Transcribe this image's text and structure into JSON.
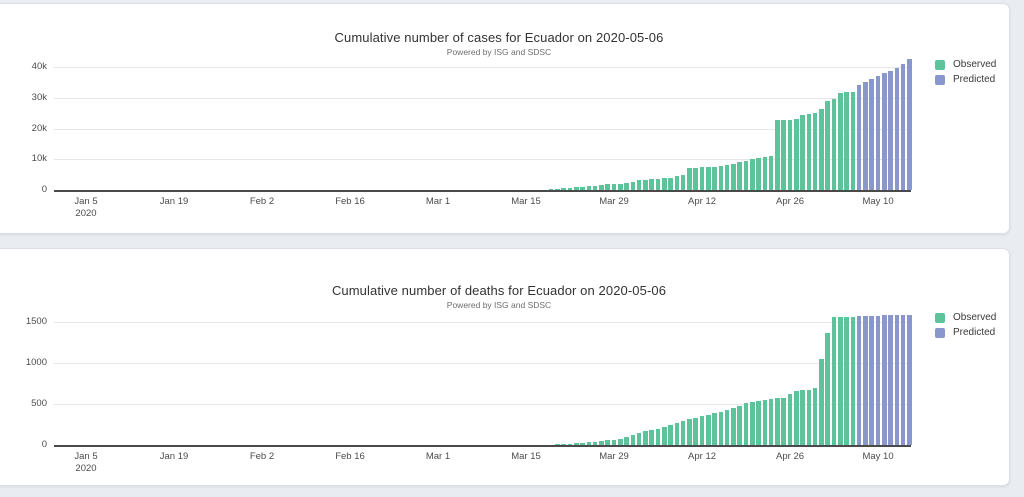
{
  "page": {
    "background_color": "#e9edf2",
    "card_color": "#ffffff"
  },
  "x_axis": {
    "ticks": [
      {
        "date": "2020-01-05",
        "label": "Jan 5",
        "sublabel": "2020"
      },
      {
        "date": "2020-01-19",
        "label": "Jan 19"
      },
      {
        "date": "2020-02-02",
        "label": "Feb 2"
      },
      {
        "date": "2020-02-16",
        "label": "Feb 16"
      },
      {
        "date": "2020-03-01",
        "label": "Mar 1"
      },
      {
        "date": "2020-03-15",
        "label": "Mar 15"
      },
      {
        "date": "2020-03-29",
        "label": "Mar 29"
      },
      {
        "date": "2020-04-12",
        "label": "Apr 12"
      },
      {
        "date": "2020-04-26",
        "label": "Apr 26"
      },
      {
        "date": "2020-05-10",
        "label": "May 10"
      }
    ]
  },
  "chart_data": [
    {
      "type": "bar",
      "title": "Cumulative number of cases for Ecuador on 2020-05-06",
      "subtitle": "Powered by ISG and SDSC",
      "xlabel": "",
      "ylabel": "",
      "x_range": [
        "2019-12-31",
        "2020-05-16"
      ],
      "ylim": [
        0,
        42600
      ],
      "grid": true,
      "legend_position": "right",
      "y_ticks": [
        {
          "label": "0",
          "value": 0
        },
        {
          "label": "10k",
          "value": 10000
        },
        {
          "label": "20k",
          "value": 20000
        },
        {
          "label": "30k",
          "value": 30000
        },
        {
          "label": "40k",
          "value": 40000
        }
      ],
      "series": [
        {
          "name": "Observed",
          "color": "#5cc39b",
          "start_date": "2020-03-01",
          "frequency": "daily",
          "values": [
            6,
            6,
            7,
            10,
            13,
            13,
            13,
            14,
            15,
            15,
            17,
            17,
            23,
            28,
            28,
            37,
            58,
            111,
            199,
            367,
            506,
            789,
            981,
            1082,
            1173,
            1403,
            1595,
            1823,
            1924,
            1962,
            2240,
            2748,
            3163,
            3368,
            3465,
            3646,
            3747,
            3995,
            4450,
            4965,
            7161,
            7257,
            7466,
            7529,
            7603,
            7858,
            8225,
            8450,
            9022,
            9468,
            10128,
            10398,
            10850,
            11183,
            22719,
            22719,
            22719,
            23240,
            24258,
            24675,
            24934,
            26336,
            29071,
            29509,
            31467,
            31881,
            31881
          ]
        },
        {
          "name": "Predicted",
          "color": "#8997cd",
          "start_date": "2020-05-07",
          "frequency": "daily",
          "values": [
            34100,
            35000,
            36000,
            37100,
            37900,
            38700,
            39700,
            41100,
            42500
          ]
        }
      ]
    },
    {
      "type": "bar",
      "title": "Cumulative number of deaths for Ecuador on 2020-05-06",
      "subtitle": "Powered by ISG and SDSC",
      "xlabel": "",
      "ylabel": "",
      "x_range": [
        "2019-12-31",
        "2020-05-16"
      ],
      "ylim": [
        0,
        1594
      ],
      "grid": true,
      "legend_position": "right",
      "y_ticks": [
        {
          "label": "0",
          "value": 0
        },
        {
          "label": "500",
          "value": 500
        },
        {
          "label": "1000",
          "value": 1000
        },
        {
          "label": "1500",
          "value": 1500
        }
      ],
      "series": [
        {
          "name": "Observed",
          "color": "#5cc39b",
          "start_date": "2020-03-14",
          "frequency": "daily",
          "values": [
            2,
            2,
            2,
            3,
            3,
            5,
            7,
            14,
            18,
            27,
            28,
            34,
            36,
            48,
            58,
            60,
            75,
            93,
            120,
            145,
            172,
            180,
            191,
            220,
            242,
            272,
            297,
            315,
            333,
            355,
            369,
            388,
            403,
            421,
            456,
            474,
            507,
            520,
            537,
            550,
            560,
            570,
            576,
            620,
            657,
            665,
            672,
            690,
            1048,
            1362,
            1553,
            1560,
            1560,
            1560
          ]
        },
        {
          "name": "Predicted",
          "color": "#8997cd",
          "start_date": "2020-05-07",
          "frequency": "daily",
          "values": [
            1568,
            1570,
            1572,
            1574,
            1576,
            1578,
            1580,
            1582,
            1584
          ]
        }
      ]
    }
  ]
}
